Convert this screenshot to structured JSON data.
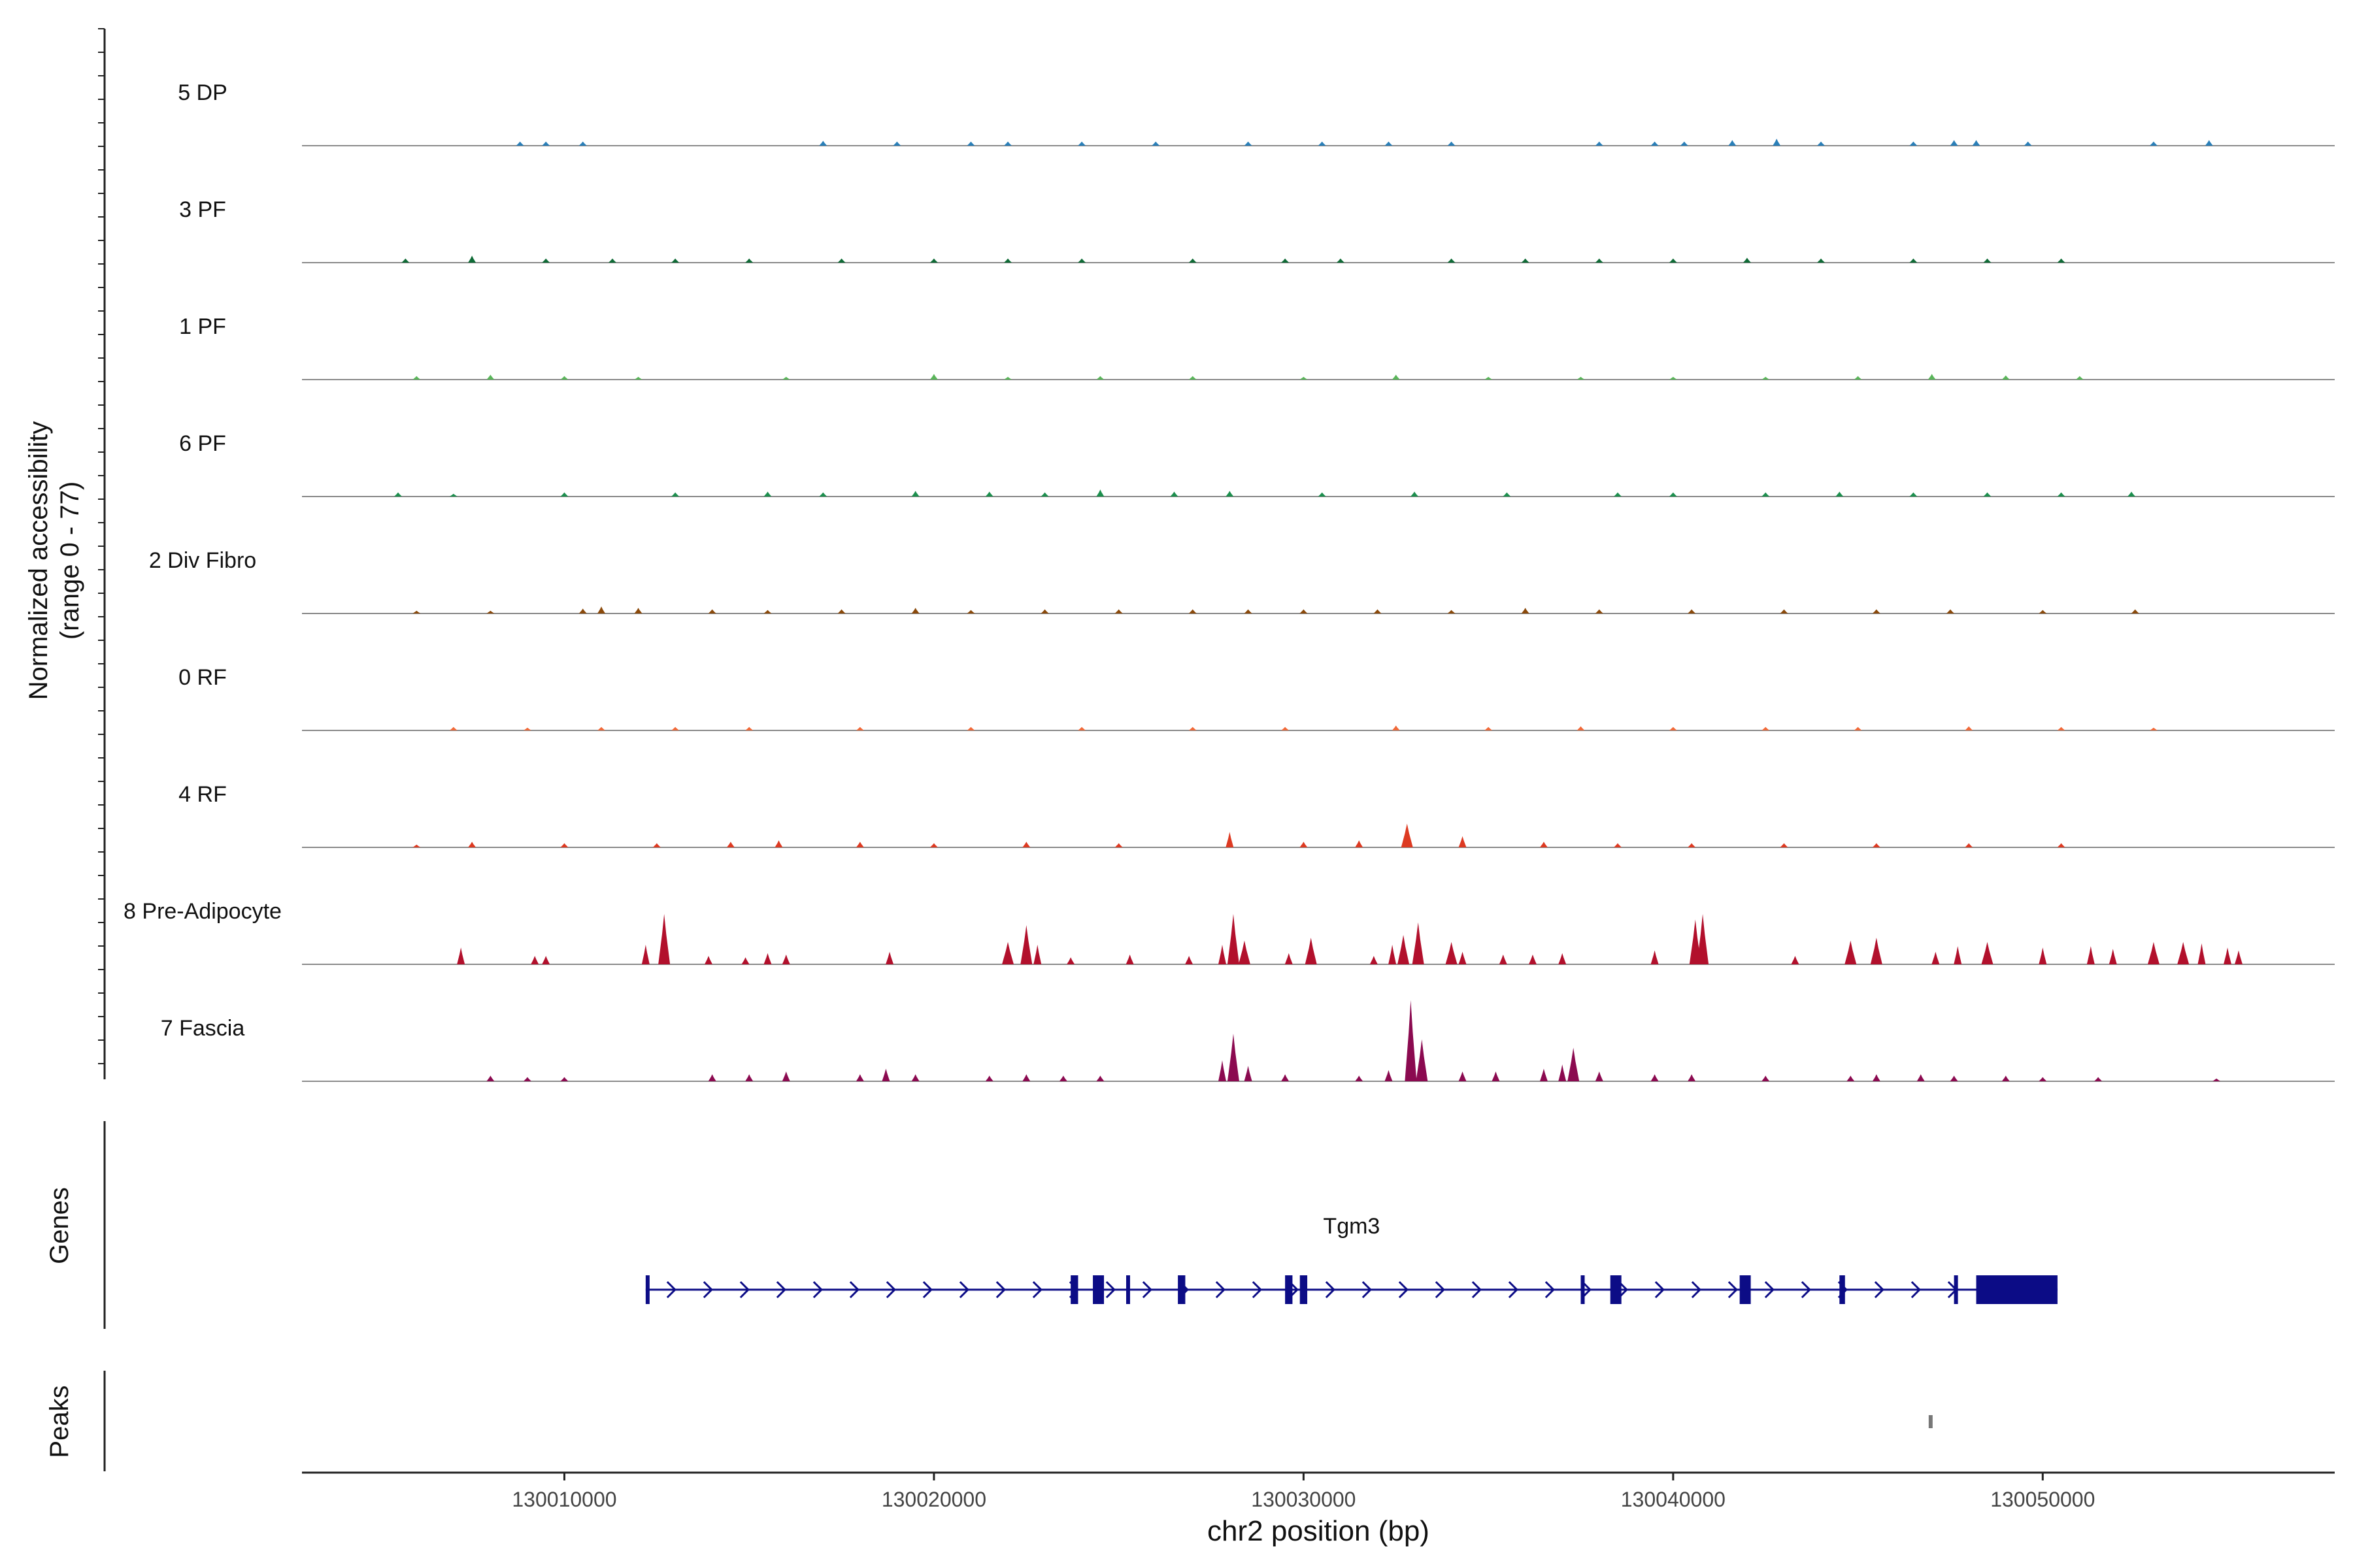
{
  "chart_data": {
    "type": "area",
    "title": "",
    "region": "chr2:130002900-130057900",
    "xlabel": "chr2 position (bp)",
    "xlim": [
      130002900,
      130057900
    ],
    "x_ticks": [
      130010000,
      130020000,
      130030000,
      130040000,
      130050000
    ],
    "x_tick_labels": [
      "130010000",
      "130020000",
      "130030000",
      "130040000",
      "130050000"
    ],
    "ylabel_line1": "Normalized accessibility",
    "ylabel_line2": "(range 0 - 77)",
    "ylim": [
      0,
      77
    ],
    "tracks": [
      {
        "name": "5 DP",
        "color": "#2a7fb8",
        "peaks": [
          [
            130008800,
            3
          ],
          [
            130009500,
            3
          ],
          [
            130010500,
            3
          ],
          [
            130017000,
            3.5
          ],
          [
            130019000,
            3
          ],
          [
            130021000,
            3
          ],
          [
            130022000,
            3
          ],
          [
            130024000,
            3
          ],
          [
            130026000,
            3
          ],
          [
            130028500,
            3
          ],
          [
            130030500,
            3
          ],
          [
            130032300,
            3
          ],
          [
            130034000,
            3
          ],
          [
            130038000,
            3
          ],
          [
            130039500,
            3
          ],
          [
            130040300,
            3
          ],
          [
            130041600,
            4
          ],
          [
            130042800,
            5
          ],
          [
            130044000,
            3
          ],
          [
            130046500,
            3
          ],
          [
            130047600,
            4
          ],
          [
            130048200,
            4
          ],
          [
            130049600,
            3
          ],
          [
            130053000,
            3
          ],
          [
            130054500,
            4
          ]
        ]
      },
      {
        "name": "3 PF",
        "color": "#0f6b36",
        "peaks": [
          [
            130005700,
            3
          ],
          [
            130007500,
            5
          ],
          [
            130009500,
            3
          ],
          [
            130011300,
            3
          ],
          [
            130013000,
            3
          ],
          [
            130015000,
            3
          ],
          [
            130017500,
            3
          ],
          [
            130020000,
            3
          ],
          [
            130022000,
            3
          ],
          [
            130024000,
            3
          ],
          [
            130027000,
            3
          ],
          [
            130029500,
            3
          ],
          [
            130031000,
            3
          ],
          [
            130034000,
            3
          ],
          [
            130036000,
            3
          ],
          [
            130038000,
            3
          ],
          [
            130040000,
            3
          ],
          [
            130042000,
            3.5
          ],
          [
            130044000,
            3
          ],
          [
            130046500,
            3
          ],
          [
            130048500,
            3
          ],
          [
            130050500,
            3
          ]
        ]
      },
      {
        "name": "1 PF",
        "color": "#5ab55a",
        "peaks": [
          [
            130006000,
            2.5
          ],
          [
            130008000,
            3.5
          ],
          [
            130010000,
            2.5
          ],
          [
            130012000,
            2
          ],
          [
            130016000,
            2
          ],
          [
            130020000,
            4
          ],
          [
            130022000,
            2
          ],
          [
            130024500,
            2.5
          ],
          [
            130027000,
            2.5
          ],
          [
            130030000,
            2
          ],
          [
            130032500,
            3.5
          ],
          [
            130035000,
            2
          ],
          [
            130037500,
            2
          ],
          [
            130040000,
            2
          ],
          [
            130042500,
            2
          ],
          [
            130045000,
            2.5
          ],
          [
            130047000,
            4
          ],
          [
            130049000,
            3
          ],
          [
            130051000,
            2.5
          ]
        ]
      },
      {
        "name": "6 PF",
        "color": "#1d8f4e",
        "peaks": [
          [
            130005500,
            3
          ],
          [
            130007000,
            2
          ],
          [
            130010000,
            3
          ],
          [
            130013000,
            3
          ],
          [
            130015500,
            3.5
          ],
          [
            130017000,
            3
          ],
          [
            130019500,
            4
          ],
          [
            130021500,
            3.5
          ],
          [
            130023000,
            3
          ],
          [
            130024500,
            5
          ],
          [
            130026500,
            3.5
          ],
          [
            130028000,
            4
          ],
          [
            130030500,
            3
          ],
          [
            130033000,
            3.5
          ],
          [
            130035500,
            3
          ],
          [
            130038500,
            3
          ],
          [
            130040000,
            3
          ],
          [
            130042500,
            3
          ],
          [
            130044500,
            3.5
          ],
          [
            130046500,
            3
          ],
          [
            130048500,
            3
          ],
          [
            130050500,
            3
          ],
          [
            130052400,
            3.5
          ]
        ]
      },
      {
        "name": "2 Div Fibro",
        "color": "#8b4a0b",
        "peaks": [
          [
            130006000,
            2
          ],
          [
            130008000,
            2
          ],
          [
            130010500,
            3.5
          ],
          [
            130011000,
            5
          ],
          [
            130012000,
            4
          ],
          [
            130014000,
            3
          ],
          [
            130015500,
            2.5
          ],
          [
            130017500,
            3
          ],
          [
            130019500,
            4
          ],
          [
            130021000,
            2.5
          ],
          [
            130023000,
            3
          ],
          [
            130025000,
            3
          ],
          [
            130027000,
            3
          ],
          [
            130028500,
            3
          ],
          [
            130030000,
            3
          ],
          [
            130032000,
            3
          ],
          [
            130034000,
            2.5
          ],
          [
            130036000,
            4
          ],
          [
            130038000,
            3
          ],
          [
            130040500,
            3
          ],
          [
            130043000,
            3
          ],
          [
            130045500,
            3
          ],
          [
            130047500,
            3
          ],
          [
            130050000,
            2.5
          ],
          [
            130052500,
            3
          ]
        ]
      },
      {
        "name": "0 RF",
        "color": "#f06a3a",
        "peaks": [
          [
            130007000,
            2.5
          ],
          [
            130009000,
            2
          ],
          [
            130011000,
            2.5
          ],
          [
            130013000,
            2.5
          ],
          [
            130015000,
            2.5
          ],
          [
            130018000,
            2.5
          ],
          [
            130021000,
            2.5
          ],
          [
            130024000,
            2.5
          ],
          [
            130027000,
            2.5
          ],
          [
            130029500,
            2.5
          ],
          [
            130032500,
            3.5
          ],
          [
            130035000,
            2.5
          ],
          [
            130037500,
            3
          ],
          [
            130040000,
            2.5
          ],
          [
            130042500,
            2.5
          ],
          [
            130045000,
            2.5
          ],
          [
            130048000,
            3
          ],
          [
            130050500,
            2.5
          ],
          [
            130053000,
            2
          ]
        ]
      },
      {
        "name": "4 RF",
        "color": "#dd3a22",
        "peaks": [
          [
            130006000,
            2
          ],
          [
            130007500,
            4
          ],
          [
            130010000,
            3
          ],
          [
            130012500,
            3
          ],
          [
            130014500,
            4
          ],
          [
            130015800,
            5
          ],
          [
            130018000,
            4
          ],
          [
            130020000,
            3
          ],
          [
            130022500,
            4
          ],
          [
            130025000,
            3
          ],
          [
            130028000,
            11
          ],
          [
            130030000,
            4
          ],
          [
            130031500,
            5
          ],
          [
            130032800,
            17
          ],
          [
            130034300,
            8
          ],
          [
            130036500,
            4
          ],
          [
            130038500,
            3
          ],
          [
            130040500,
            3
          ],
          [
            130043000,
            3
          ],
          [
            130045500,
            3
          ],
          [
            130048000,
            3
          ],
          [
            130050500,
            3
          ]
        ]
      },
      {
        "name": "8 Pre-Adipocyte",
        "color": "#b2102c",
        "peaks": [
          [
            130007200,
            12
          ],
          [
            130009200,
            6
          ],
          [
            130009500,
            6
          ],
          [
            130012200,
            14
          ],
          [
            130012700,
            36
          ],
          [
            130013900,
            6
          ],
          [
            130014900,
            5
          ],
          [
            130015500,
            8
          ],
          [
            130016000,
            7
          ],
          [
            130018800,
            9
          ],
          [
            130022000,
            16
          ],
          [
            130022500,
            28
          ],
          [
            130022800,
            14
          ],
          [
            130023700,
            5
          ],
          [
            130025300,
            7
          ],
          [
            130026900,
            6
          ],
          [
            130027800,
            14
          ],
          [
            130028100,
            36
          ],
          [
            130028400,
            17
          ],
          [
            130029600,
            8
          ],
          [
            130030200,
            19
          ],
          [
            130031900,
            6
          ],
          [
            130032400,
            14
          ],
          [
            130032700,
            21
          ],
          [
            130033100,
            30
          ],
          [
            130034000,
            16
          ],
          [
            130034300,
            9
          ],
          [
            130035400,
            7
          ],
          [
            130036200,
            7
          ],
          [
            130037000,
            8
          ],
          [
            130039500,
            10
          ],
          [
            130040600,
            32
          ],
          [
            130040800,
            36
          ],
          [
            130043300,
            6
          ],
          [
            130044800,
            17
          ],
          [
            130045500,
            19
          ],
          [
            130047100,
            9
          ],
          [
            130047700,
            13
          ],
          [
            130048500,
            16
          ],
          [
            130050000,
            12
          ],
          [
            130051300,
            13
          ],
          [
            130051900,
            11
          ],
          [
            130053000,
            16
          ],
          [
            130053800,
            16
          ],
          [
            130054300,
            15
          ],
          [
            130055000,
            12
          ],
          [
            130055300,
            10
          ]
        ]
      },
      {
        "name": "7 Fascia",
        "color": "#8b0a50",
        "peaks": [
          [
            130008000,
            4
          ],
          [
            130009000,
            3
          ],
          [
            130010000,
            3
          ],
          [
            130014000,
            5
          ],
          [
            130015000,
            5
          ],
          [
            130016000,
            7
          ],
          [
            130018000,
            5
          ],
          [
            130018700,
            9
          ],
          [
            130019500,
            5
          ],
          [
            130021500,
            4
          ],
          [
            130022500,
            5
          ],
          [
            130023500,
            4
          ],
          [
            130024500,
            4
          ],
          [
            130027800,
            15
          ],
          [
            130028100,
            34
          ],
          [
            130028500,
            11
          ],
          [
            130029500,
            5
          ],
          [
            130031500,
            4
          ],
          [
            130032300,
            8
          ],
          [
            130032900,
            58
          ],
          [
            130033200,
            30
          ],
          [
            130034300,
            7
          ],
          [
            130035200,
            7
          ],
          [
            130036500,
            9
          ],
          [
            130037000,
            12
          ],
          [
            130037300,
            24
          ],
          [
            130038000,
            7
          ],
          [
            130039500,
            5
          ],
          [
            130040500,
            5
          ],
          [
            130042500,
            4
          ],
          [
            130044800,
            4
          ],
          [
            130045500,
            5
          ],
          [
            130046700,
            5
          ],
          [
            130047600,
            4
          ],
          [
            130049000,
            4
          ],
          [
            130050000,
            3
          ],
          [
            130051500,
            3
          ],
          [
            130054700,
            2
          ]
        ]
      }
    ],
    "gene": {
      "name": "Tgm3",
      "strand": "+",
      "start": 130012200,
      "end": 130050400,
      "exons": [
        [
          130012200,
          130012300
        ],
        [
          130023700,
          130023900
        ],
        [
          130024300,
          130024600
        ],
        [
          130025200,
          130025300
        ],
        [
          130026600,
          130026800
        ],
        [
          130029500,
          130029700
        ],
        [
          130029900,
          130030100
        ],
        [
          130037500,
          130037600
        ],
        [
          130038300,
          130038600
        ],
        [
          130041800,
          130042100
        ],
        [
          130044500,
          130044650
        ],
        [
          130047600,
          130047700
        ],
        [
          130048200,
          130050400
        ]
      ]
    },
    "peaks_track": [
      [
        130046950,
        130047050
      ]
    ],
    "panel_labels": {
      "genes": "Genes",
      "peaks": "Peaks"
    }
  }
}
